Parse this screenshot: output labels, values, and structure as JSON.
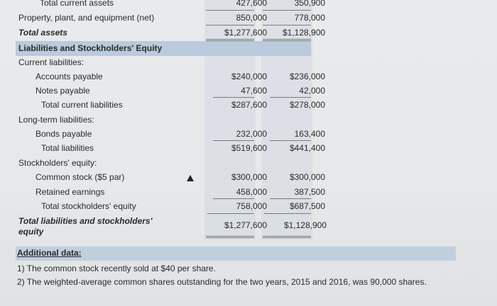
{
  "rows": {
    "total_current_assets": {
      "label": "Total current assets",
      "v2016": "427,600",
      "v2015": "350,900"
    },
    "ppe": {
      "label": "Property, plant, and equipment (net)",
      "v2016": "850,000",
      "v2015": "778,000"
    },
    "total_assets": {
      "label": "Total assets",
      "v2016": "$1,277,600",
      "v2015": "$1,128,900"
    },
    "liab_header": {
      "label": "Liabilities and Stockholders' Equity"
    },
    "current_liab": {
      "label": "Current liabilities:"
    },
    "ap": {
      "label": "Accounts payable",
      "v2016": "$240,000",
      "v2015": "$236,000"
    },
    "np": {
      "label": "Notes payable",
      "v2016": "47,600",
      "v2015": "42,000"
    },
    "tcl": {
      "label": "Total current liabilities",
      "v2016": "$287,600",
      "v2015": "$278,000"
    },
    "ltl": {
      "label": "Long-term liabilities:"
    },
    "bonds": {
      "label": "Bonds payable",
      "v2016": "232,000",
      "v2015": "163,400"
    },
    "tl": {
      "label": "Total liabilities",
      "v2016": "$519,600",
      "v2015": "$441,400"
    },
    "se": {
      "label": "Stockholders' equity:"
    },
    "cs": {
      "label": "Common stock ($5 par)",
      "v2016": "$300,000",
      "v2015": "$300,000"
    },
    "re": {
      "label": "Retained earnings",
      "v2016": "458,000",
      "v2015": "387,500"
    },
    "tse": {
      "label": "Total stockholders' equity",
      "v2016": "758,000",
      "v2015": "$687,500"
    },
    "tlse": {
      "label_line1": "Total liabilities and stockholders'",
      "label_line2": "equity",
      "v2016": "$1,277,600",
      "v2015": "$1,128,900"
    }
  },
  "additional": {
    "title": "Additional data:",
    "note1": "1) The common stock recently sold at $40 per share.",
    "note2": "2) The weighted-average common shares outstanding for the two years, 2015 and 2016, was 90,000 shares."
  },
  "colors": {
    "highlight": "#b9cbdc",
    "background": "#e8e9eb"
  }
}
